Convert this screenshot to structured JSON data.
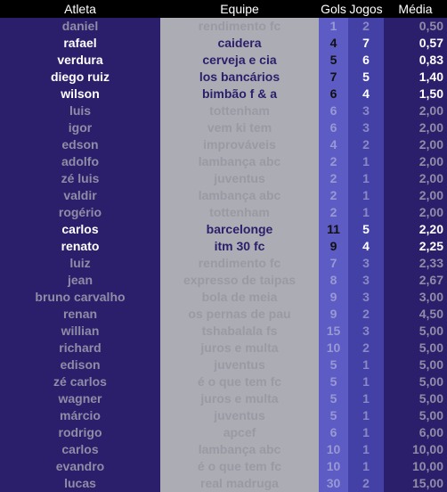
{
  "table": {
    "header": [
      "Atleta",
      "Equipe",
      "Gols",
      "Jogos",
      "Média"
    ],
    "rows": [
      {
        "cells": [
          "daniel",
          "rendimento fc",
          "1",
          "2",
          "0,50"
        ],
        "emphasis": false
      },
      {
        "cells": [
          "rafael",
          "caidera",
          "4",
          "7",
          "0,57"
        ],
        "emphasis": true
      },
      {
        "cells": [
          "verdura",
          "cerveja e cia",
          "5",
          "6",
          "0,83"
        ],
        "emphasis": true
      },
      {
        "cells": [
          "diego ruiz",
          "los bancários",
          "7",
          "5",
          "1,40"
        ],
        "emphasis": true
      },
      {
        "cells": [
          "wilson",
          "bimbão f & a",
          "6",
          "4",
          "1,50"
        ],
        "emphasis": true
      },
      {
        "cells": [
          "luis",
          "tottenham",
          "6",
          "3",
          "2,00"
        ],
        "emphasis": false
      },
      {
        "cells": [
          "igor",
          "vem ki tem",
          "6",
          "3",
          "2,00"
        ],
        "emphasis": false
      },
      {
        "cells": [
          "edson",
          "improváveis",
          "4",
          "2",
          "2,00"
        ],
        "emphasis": false
      },
      {
        "cells": [
          "adolfo",
          "lambança abc",
          "2",
          "1",
          "2,00"
        ],
        "emphasis": false
      },
      {
        "cells": [
          "zé luis",
          "juventus",
          "2",
          "1",
          "2,00"
        ],
        "emphasis": false
      },
      {
        "cells": [
          "valdir",
          "lambança abc",
          "2",
          "1",
          "2,00"
        ],
        "emphasis": false
      },
      {
        "cells": [
          "rogério",
          "tottenham",
          "2",
          "1",
          "2,00"
        ],
        "emphasis": false
      },
      {
        "cells": [
          "carlos",
          "barcelonge",
          "11",
          "5",
          "2,20"
        ],
        "emphasis": true
      },
      {
        "cells": [
          "renato",
          "itm 30 fc",
          "9",
          "4",
          "2,25"
        ],
        "emphasis": true
      },
      {
        "cells": [
          "luiz",
          "rendimento fc",
          "7",
          "3",
          "2,33"
        ],
        "emphasis": false
      },
      {
        "cells": [
          "jean",
          "expresso de taipas",
          "8",
          "3",
          "2,67"
        ],
        "emphasis": false
      },
      {
        "cells": [
          "bruno carvalho",
          "bola de meia",
          "9",
          "3",
          "3,00"
        ],
        "emphasis": false
      },
      {
        "cells": [
          "renan",
          "os pernas de pau",
          "9",
          "2",
          "4,50"
        ],
        "emphasis": false
      },
      {
        "cells": [
          "willian",
          "tshabalala fs",
          "15",
          "3",
          "5,00"
        ],
        "emphasis": false
      },
      {
        "cells": [
          "richard",
          "juros e multa",
          "10",
          "2",
          "5,00"
        ],
        "emphasis": false
      },
      {
        "cells": [
          "edison",
          "juventus",
          "5",
          "1",
          "5,00"
        ],
        "emphasis": false
      },
      {
        "cells": [
          "zé carlos",
          "é o que tem fc",
          "5",
          "1",
          "5,00"
        ],
        "emphasis": false
      },
      {
        "cells": [
          "wagner",
          "juros e multa",
          "5",
          "1",
          "5,00"
        ],
        "emphasis": false
      },
      {
        "cells": [
          "márcio",
          "juventus",
          "5",
          "1",
          "5,00"
        ],
        "emphasis": false
      },
      {
        "cells": [
          "rodrigo",
          "apcef",
          "6",
          "1",
          "6,00"
        ],
        "emphasis": false
      },
      {
        "cells": [
          "carlos",
          "lambança abc",
          "10",
          "1",
          "10,00"
        ],
        "emphasis": false
      },
      {
        "cells": [
          "evandro",
          "é o que tem fc",
          "10",
          "1",
          "10,00"
        ],
        "emphasis": false
      },
      {
        "cells": [
          "lucas",
          "real madruga",
          "30",
          "2",
          "15,00"
        ],
        "emphasis": false
      }
    ]
  }
}
